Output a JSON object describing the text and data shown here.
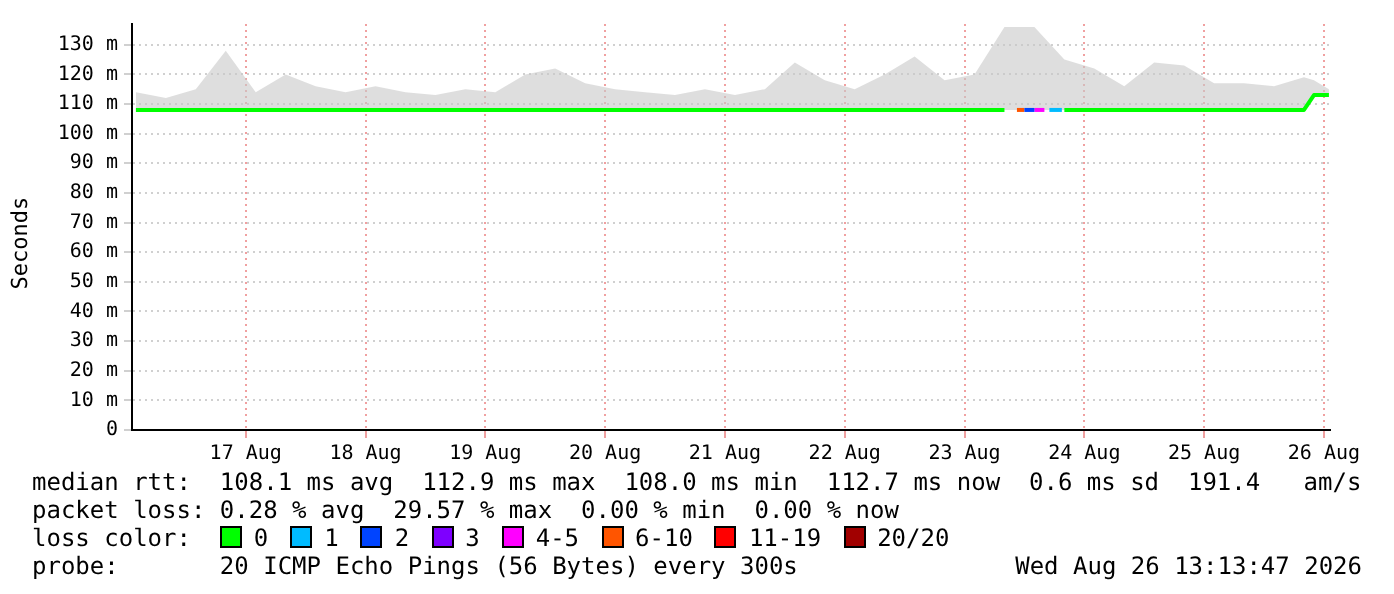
{
  "chart_data": {
    "type": "line",
    "ylabel": "Seconds",
    "legend_title": "loss color:",
    "legend": "bottom",
    "grid": true,
    "marker": "none",
    "line_style": "solid",
    "xlim": [
      "2026-08-16T13:13",
      "2026-08-26T13:13"
    ],
    "xticks": [
      {
        "value": "2026-08-17T12:00",
        "label": "17 Aug"
      },
      {
        "value": "2026-08-18T12:00",
        "label": "18 Aug"
      },
      {
        "value": "2026-08-19T12:00",
        "label": "19 Aug"
      },
      {
        "value": "2026-08-20T12:00",
        "label": "20 Aug"
      },
      {
        "value": "2026-08-21T12:00",
        "label": "21 Aug"
      },
      {
        "value": "2026-08-22T12:00",
        "label": "22 Aug"
      },
      {
        "value": "2026-08-23T12:00",
        "label": "23 Aug"
      },
      {
        "value": "2026-08-24T12:00",
        "label": "24 Aug"
      },
      {
        "value": "2026-08-25T12:00",
        "label": "25 Aug"
      },
      {
        "value": "2026-08-26T12:00",
        "label": "26 Aug"
      }
    ],
    "ylim": [
      0,
      137
    ],
    "yticks": [
      0,
      {
        "value": 10,
        "label": "10 m"
      },
      {
        "value": 20,
        "label": "20 m"
      },
      {
        "value": 30,
        "label": "30 m"
      },
      {
        "value": 40,
        "label": "40 m"
      },
      {
        "value": 50,
        "label": "50 m"
      },
      {
        "value": 60,
        "label": "60 m"
      },
      {
        "value": 70,
        "label": "70 m"
      },
      {
        "value": 80,
        "label": "80 m"
      },
      {
        "value": 90,
        "label": "90 m"
      },
      {
        "value": 100,
        "label": "100 m"
      },
      {
        "value": 110,
        "label": "110 m"
      },
      {
        "value": 120,
        "label": "120 m"
      },
      {
        "value": 130,
        "label": "130 m"
      }
    ],
    "series": [
      {
        "name": "0",
        "color": "#00ff00",
        "x": [
          "2026-08-16T14:00",
          "2026-08-16T20:00",
          "2026-08-17T02:00",
          "2026-08-17T08:00",
          "2026-08-17T14:00",
          "2026-08-17T20:00",
          "2026-08-18T02:00",
          "2026-08-18T08:00",
          "2026-08-18T14:00",
          "2026-08-18T20:00",
          "2026-08-19T02:00",
          "2026-08-19T08:00",
          "2026-08-19T14:00",
          "2026-08-19T20:00",
          "2026-08-20T02:00",
          "2026-08-20T08:00",
          "2026-08-20T14:00",
          "2026-08-20T20:00",
          "2026-08-21T02:00",
          "2026-08-21T08:00",
          "2026-08-21T14:00",
          "2026-08-21T20:00",
          "2026-08-22T02:00",
          "2026-08-22T08:00",
          "2026-08-22T14:00",
          "2026-08-22T20:00",
          "2026-08-23T02:00",
          "2026-08-23T08:00",
          "2026-08-23T14:00",
          "2026-08-23T20:00",
          "2026-08-24T02:00",
          "2026-08-24T08:00",
          "2026-08-24T14:00",
          "2026-08-24T20:00",
          "2026-08-25T02:00",
          "2026-08-25T08:00",
          "2026-08-25T14:00",
          "2026-08-25T20:00",
          "2026-08-26T02:00",
          "2026-08-26T08:00",
          "2026-08-26T10:00",
          "2026-08-26T13:00"
        ],
        "values": [
          108,
          108,
          108,
          108,
          108,
          108,
          108,
          108,
          108,
          108,
          108,
          108,
          108,
          108,
          108,
          108,
          108,
          108,
          108,
          108,
          108,
          108,
          108,
          108,
          108,
          108,
          108,
          108,
          108,
          108,
          null,
          108,
          108,
          108,
          108,
          108,
          108,
          108,
          108,
          108,
          113,
          113
        ],
        "lower": [
          108,
          108,
          108,
          108,
          108,
          108,
          108,
          108,
          108,
          108,
          108,
          108,
          108,
          108,
          108,
          108,
          108,
          108,
          108,
          108,
          108,
          108,
          108,
          108,
          108,
          108,
          108,
          108,
          108,
          108,
          108,
          108,
          108,
          108,
          108,
          108,
          108,
          108,
          108,
          108,
          113,
          113
        ],
        "upper": [
          114,
          112,
          115,
          128,
          114,
          120,
          116,
          114,
          116,
          114,
          113,
          115,
          114,
          120,
          122,
          117,
          115,
          114,
          113,
          115,
          113,
          115,
          124,
          118,
          115,
          120,
          126,
          118,
          120,
          136,
          136,
          125,
          122,
          116,
          124,
          123,
          117,
          117,
          116,
          119,
          118,
          115
        ]
      },
      {
        "name": "1",
        "color": "#00bbff",
        "x": [
          "2026-08-24T05:00",
          "2026-08-24T07:30"
        ],
        "values": [
          108,
          108
        ]
      },
      {
        "name": "2",
        "color": "#0044ff",
        "x": [
          "2026-08-24T00:00",
          "2026-08-24T02:00"
        ],
        "values": [
          108,
          108
        ]
      },
      {
        "name": "3",
        "color": "#7e00ff"
      },
      {
        "name": "4-5",
        "color": "#ff00ff",
        "x": [
          "2026-08-24T02:00",
          "2026-08-24T04:00"
        ],
        "values": [
          108,
          108
        ]
      },
      {
        "name": "6-10",
        "color": "#ff5500",
        "x": [
          "2026-08-23T22:30",
          "2026-08-24T00:00"
        ],
        "values": [
          108,
          108
        ]
      },
      {
        "name": "11-19",
        "color": "#ff0000"
      },
      {
        "name": "20/20",
        "color": "#a10000"
      }
    ],
    "annotations": [
      "median rtt:  108.1 ms avg  112.9 ms max  108.0 ms min  112.7 ms now  0.6 ms sd  191.4   am/s",
      "packet loss: 0.28 % avg  29.57 % max  0.00 % min  0.00 % now",
      "probe:       20 ICMP Echo Pings (56 Bytes) every 300s",
      "Wed Aug 26 13:13:47 2026"
    ]
  }
}
